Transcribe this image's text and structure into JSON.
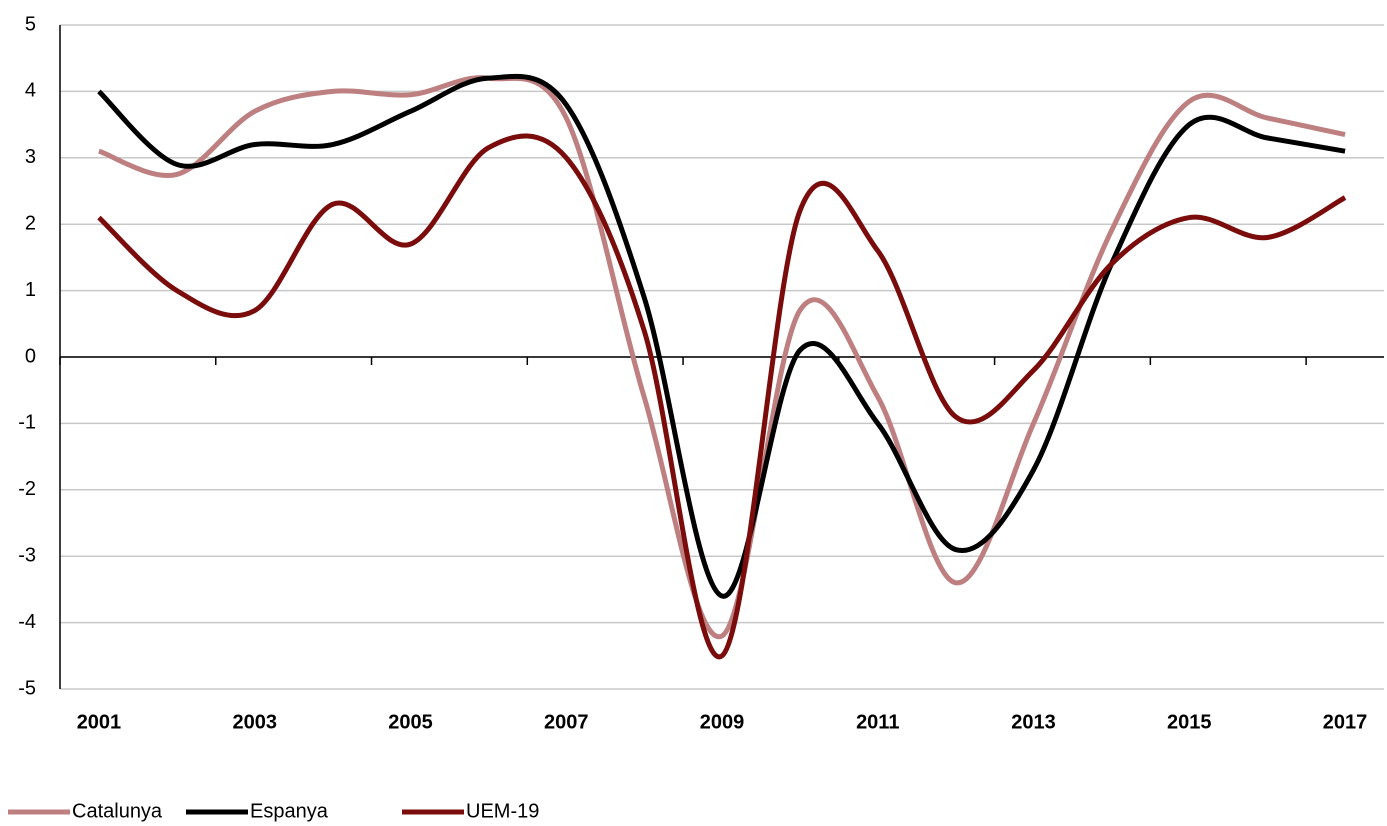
{
  "chart_data": {
    "type": "line",
    "categories": [
      "2001",
      null,
      "2003",
      null,
      "2005",
      null,
      "2007",
      null,
      "2009",
      null,
      "2011",
      null,
      "2013",
      null,
      "2015",
      null,
      "2017"
    ],
    "series": [
      {
        "name": "Catalunya",
        "color": "#bd7f7f",
        "values": [
          3.1,
          2.75,
          3.7,
          4.0,
          3.95,
          4.2,
          3.6,
          -0.6,
          -4.2,
          0.7,
          -0.6,
          -3.4,
          -1.0,
          1.9,
          3.85,
          3.6,
          3.35
        ]
      },
      {
        "name": "Espanya",
        "color": "#000000",
        "values": [
          4.0,
          2.9,
          3.2,
          3.2,
          3.7,
          4.2,
          3.8,
          0.9,
          -3.6,
          0.1,
          -1.0,
          -2.9,
          -1.7,
          1.4,
          3.5,
          3.3,
          3.1
        ]
      },
      {
        "name": "UEM-19",
        "color": "#7a0c0c",
        "values": [
          2.1,
          1.0,
          0.7,
          2.3,
          1.7,
          3.15,
          3.0,
          0.4,
          -4.5,
          2.2,
          1.6,
          -0.9,
          -0.2,
          1.4,
          2.1,
          1.8,
          2.4
        ]
      }
    ],
    "ylim": [
      -5,
      5
    ],
    "yticks": [
      -5,
      -4,
      -3,
      -2,
      -1,
      0,
      1,
      2,
      3,
      4,
      5
    ],
    "grid": true,
    "legend": "bottom"
  }
}
